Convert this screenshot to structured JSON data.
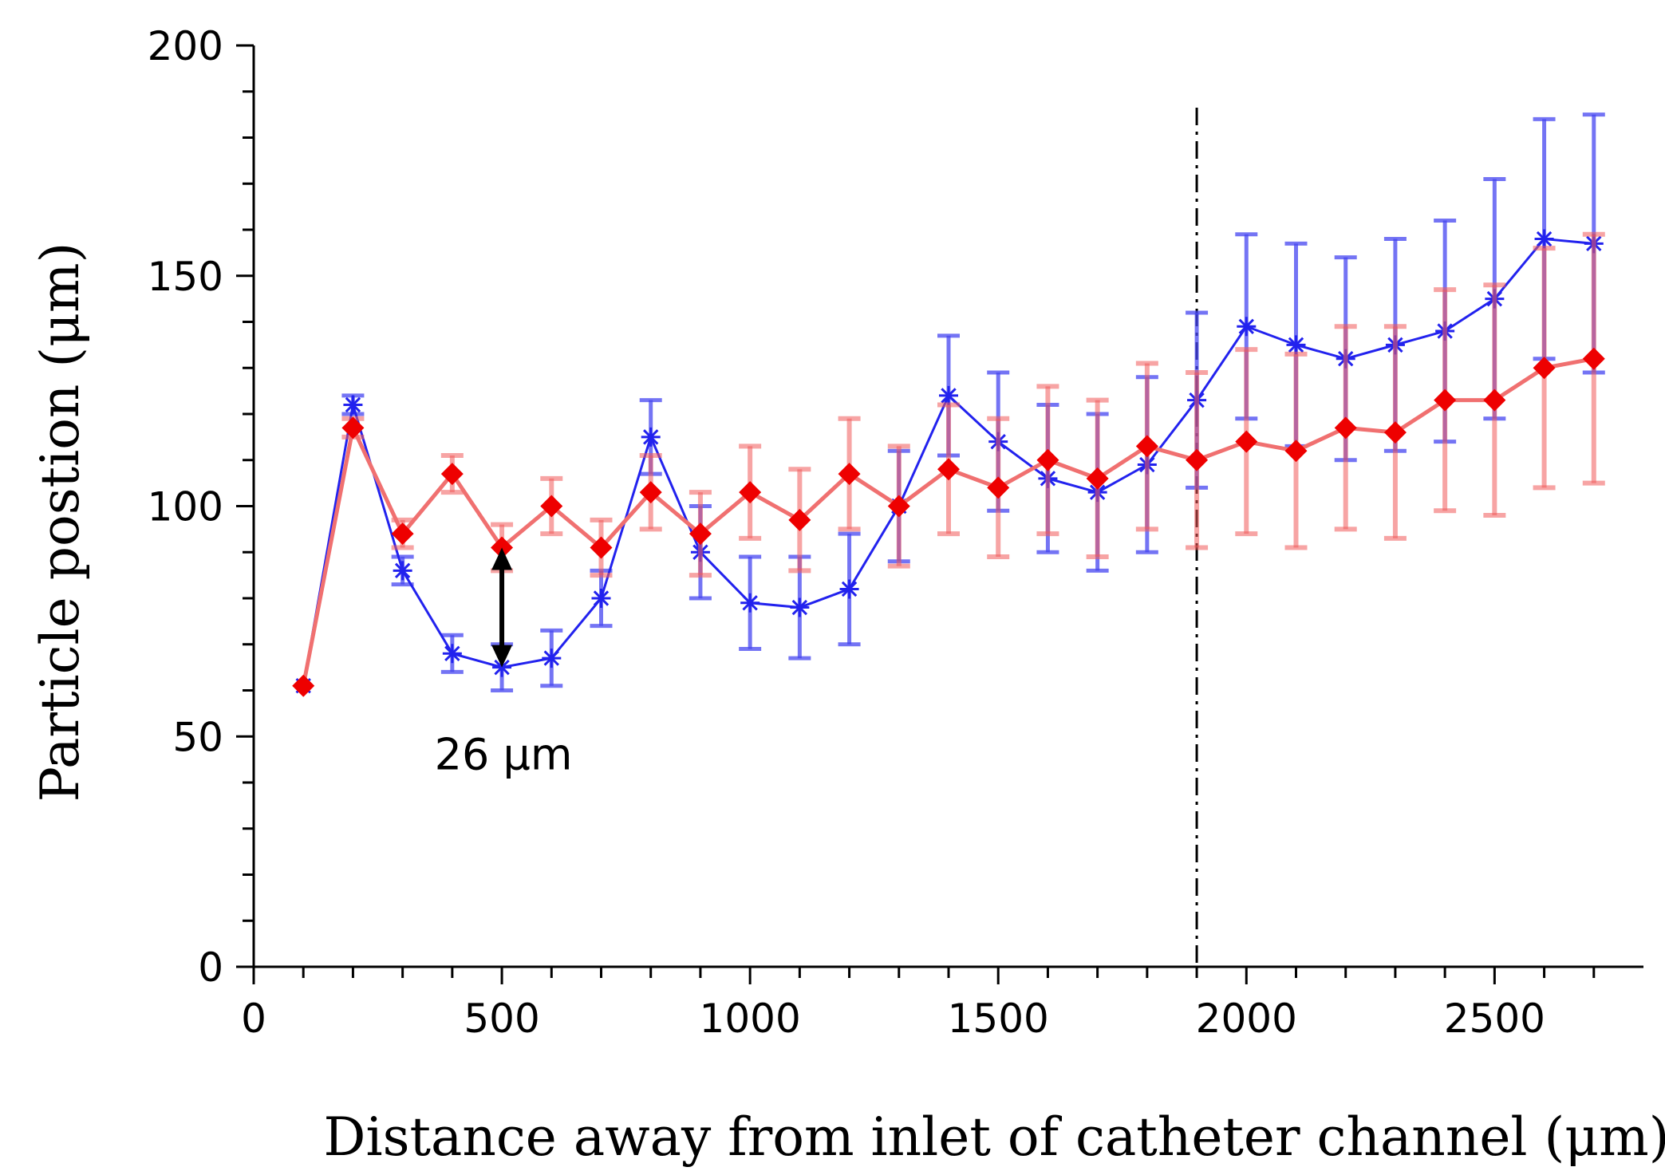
{
  "chart_data": {
    "type": "line",
    "title": "",
    "xlabel": "Distance away from inlet of catheter channel (μm)",
    "ylabel": "Particle postion (μm)",
    "xlim": [
      0,
      2800
    ],
    "ylim": [
      0,
      200
    ],
    "x_ticks": [
      "0",
      "500",
      "1000",
      "1500",
      "2000",
      "2500"
    ],
    "x_tick_values": [
      0,
      500,
      1000,
      1500,
      2000,
      2500
    ],
    "y_ticks": [
      "0",
      "50",
      "100",
      "150",
      "200"
    ],
    "y_tick_values": [
      0,
      50,
      100,
      150,
      200
    ],
    "x_minor_step": 100,
    "y_minor_step": 10,
    "vline_x": 1900,
    "annotation": {
      "text": "26 μm",
      "x": 500,
      "y_from": 65,
      "y_to": 91
    },
    "series": [
      {
        "name": "blue",
        "color": "#2222ee",
        "marker": "asterisk",
        "x": [
          100,
          200,
          300,
          400,
          500,
          600,
          700,
          800,
          900,
          1000,
          1100,
          1200,
          1300,
          1400,
          1500,
          1600,
          1700,
          1800,
          1900,
          2000,
          2100,
          2200,
          2300,
          2400,
          2500,
          2600,
          2700
        ],
        "y": [
          61,
          122,
          86,
          68,
          65,
          67,
          80,
          115,
          90,
          79,
          78,
          82,
          100,
          124,
          114,
          106,
          103,
          109,
          123,
          139,
          135,
          132,
          135,
          138,
          145,
          158,
          157
        ],
        "err": [
          0,
          2,
          3,
          4,
          5,
          6,
          6,
          8,
          10,
          10,
          11,
          12,
          12,
          13,
          15,
          16,
          17,
          19,
          19,
          20,
          22,
          22,
          23,
          24,
          26,
          26,
          28
        ]
      },
      {
        "name": "red",
        "color": "#ee0000",
        "marker": "diamond",
        "x": [
          100,
          200,
          300,
          400,
          500,
          600,
          700,
          800,
          900,
          1000,
          1100,
          1200,
          1300,
          1400,
          1500,
          1600,
          1700,
          1800,
          1900,
          2000,
          2100,
          2200,
          2300,
          2400,
          2500,
          2600,
          2700
        ],
        "y": [
          61,
          117,
          94,
          107,
          91,
          100,
          91,
          103,
          94,
          103,
          97,
          107,
          100,
          108,
          104,
          110,
          106,
          113,
          110,
          114,
          112,
          117,
          116,
          123,
          123,
          130,
          132
        ],
        "err": [
          0,
          2,
          3,
          4,
          5,
          6,
          6,
          8,
          9,
          10,
          11,
          12,
          13,
          14,
          15,
          16,
          17,
          18,
          19,
          20,
          21,
          22,
          23,
          24,
          25,
          26,
          27
        ]
      }
    ]
  }
}
